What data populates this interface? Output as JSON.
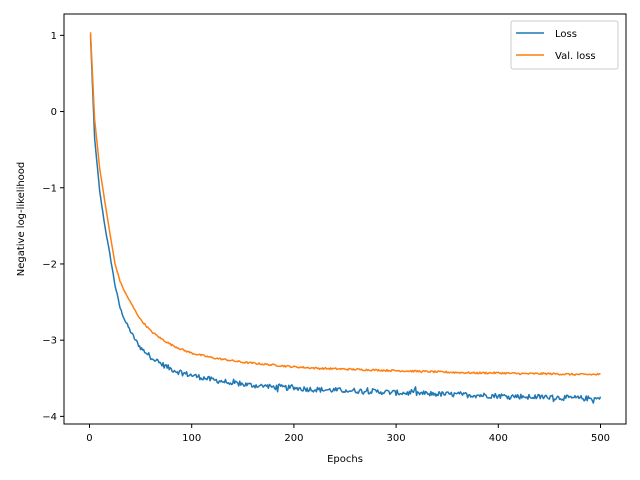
{
  "chart_data": {
    "type": "line",
    "title": "",
    "xlabel": "Epochs",
    "ylabel": "Negative log-likelihood",
    "xlim": [
      -24.95,
      524.95
    ],
    "ylim": [
      -4.1,
      1.28
    ],
    "xticks": [
      0,
      100,
      200,
      300,
      400,
      500
    ],
    "xtick_labels": [
      "0",
      "100",
      "200",
      "300",
      "400",
      "500"
    ],
    "yticks": [
      1,
      0,
      -1,
      -2,
      -3,
      -4
    ],
    "ytick_labels": [
      "1",
      "0",
      "−1",
      "−2",
      "−3",
      "−4"
    ],
    "grid": false,
    "legend_position": "top-right",
    "x": [
      1,
      5,
      10,
      15,
      20,
      25,
      30,
      35,
      40,
      45,
      50,
      60,
      70,
      80,
      90,
      100,
      110,
      120,
      130,
      140,
      150,
      175,
      200,
      225,
      250,
      275,
      300,
      325,
      350,
      375,
      400,
      425,
      450,
      475,
      500
    ],
    "series": [
      {
        "name": "Loss",
        "color": "#1f77b4",
        "noise": 0.035,
        "values": [
          1.0,
          -0.35,
          -1.05,
          -1.5,
          -1.88,
          -2.28,
          -2.58,
          -2.75,
          -2.88,
          -3.0,
          -3.1,
          -3.22,
          -3.31,
          -3.38,
          -3.43,
          -3.46,
          -3.49,
          -3.52,
          -3.54,
          -3.56,
          -3.58,
          -3.61,
          -3.63,
          -3.65,
          -3.66,
          -3.67,
          -3.69,
          -3.7,
          -3.71,
          -3.72,
          -3.73,
          -3.74,
          -3.75,
          -3.76,
          -3.77
        ]
      },
      {
        "name": "Val. loss",
        "color": "#ff7f0e",
        "noise": 0.012,
        "values": [
          1.04,
          -0.1,
          -0.75,
          -1.18,
          -1.6,
          -2.0,
          -2.23,
          -2.38,
          -2.5,
          -2.62,
          -2.73,
          -2.88,
          -2.98,
          -3.06,
          -3.12,
          -3.17,
          -3.2,
          -3.23,
          -3.25,
          -3.27,
          -3.29,
          -3.32,
          -3.35,
          -3.37,
          -3.38,
          -3.39,
          -3.4,
          -3.41,
          -3.42,
          -3.43,
          -3.43,
          -3.44,
          -3.44,
          -3.45,
          -3.45
        ]
      }
    ]
  }
}
